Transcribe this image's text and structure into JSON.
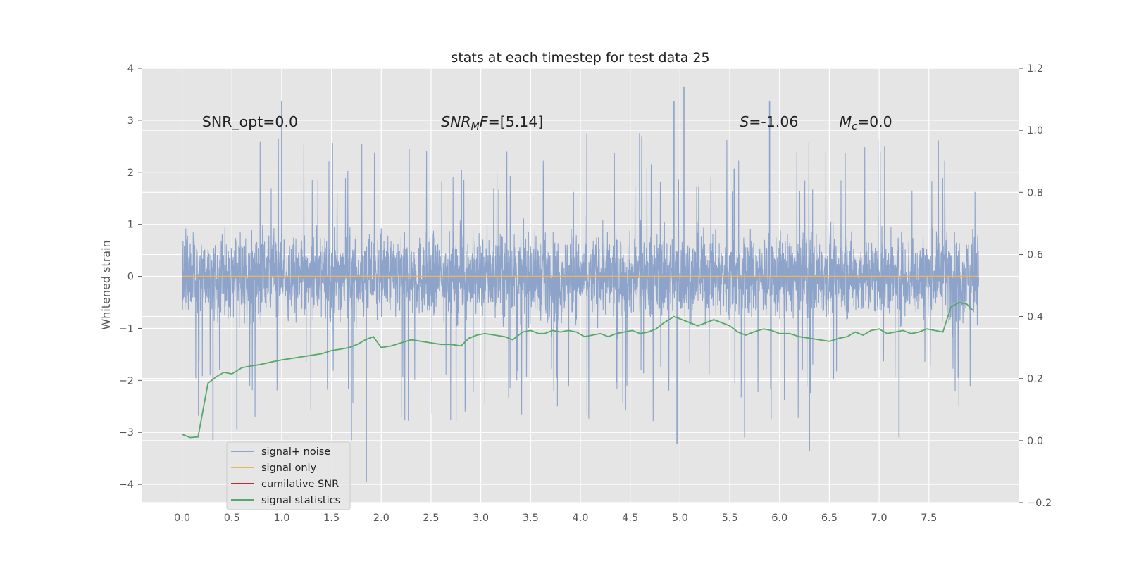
{
  "chart_data": {
    "type": "line",
    "title": "stats at each timestep for test data 25",
    "ylabel": "Whitened strain",
    "xlim": [
      -0.4,
      8.4
    ],
    "ylim": [
      -4.35,
      4
    ],
    "y2lim": [
      -0.2,
      1.2
    ],
    "x_ticks": [
      0.0,
      0.5,
      1.0,
      1.5,
      2.0,
      2.5,
      3.0,
      3.5,
      4.0,
      4.5,
      5.0,
      5.5,
      6.0,
      6.5,
      7.0,
      7.5
    ],
    "x_tick_labels": [
      "0.0",
      "0.5",
      "1.0",
      "1.5",
      "2.0",
      "2.5",
      "3.0",
      "3.5",
      "4.0",
      "4.5",
      "5.0",
      "5.5",
      "6.0",
      "6.5",
      "7.0",
      "7.5"
    ],
    "y_ticks": [
      -4,
      -3,
      -2,
      -1,
      0,
      1,
      2,
      3,
      4
    ],
    "y_tick_labels": [
      "−4",
      "−3",
      "−2",
      "−1",
      "0",
      "1",
      "2",
      "3",
      "4"
    ],
    "y2_ticks": [
      -0.2,
      0.0,
      0.2,
      0.4,
      0.6,
      0.8,
      1.0,
      1.2
    ],
    "y2_tick_labels": [
      "−0.2",
      "0.0",
      "0.2",
      "0.4",
      "0.6",
      "0.8",
      "1.0",
      "1.2"
    ],
    "grid": true,
    "legend_position": "lower-left",
    "annotations": [
      {
        "id": "snr-opt",
        "html": "SNR_opt=0.0",
        "x": 0.2,
        "y": 2.88
      },
      {
        "id": "snr-mf",
        "html": "<tspan font-style='italic'>SNR</tspan><tspan font-style='italic' font-size='14' dy='4'>M</tspan><tspan font-style='italic' dy='-4'>F</tspan>=[5.14]",
        "x": 2.6,
        "y": 2.88
      },
      {
        "id": "s-stat",
        "html": "<tspan font-style='italic'>S</tspan>=-1.06",
        "x": 5.6,
        "y": 2.88
      },
      {
        "id": "mc",
        "html": "<tspan font-style='italic'>M</tspan><tspan font-style='italic' font-size='14' dy='4'>c</tspan><tspan dy='-4'>=0.0</tspan>",
        "x": 6.6,
        "y": 2.88
      }
    ],
    "series": [
      {
        "name": "signal+ noise",
        "color": "#8da3c9",
        "axis": "left",
        "style": "dense_noise",
        "sample_rate_hz": 512,
        "x_range": [
          0.0,
          8.0
        ],
        "envelope": [
          -1.6,
          1.6
        ],
        "spikes": [
          {
            "x": 0.31,
            "y": -3.15
          },
          {
            "x": 1.0,
            "y": 3.38
          },
          {
            "x": 1.85,
            "y": -3.95
          },
          {
            "x": 4.94,
            "y": 3.37
          },
          {
            "x": 5.04,
            "y": 3.65
          },
          {
            "x": 4.97,
            "y": -3.22
          },
          {
            "x": 5.9,
            "y": 3.38
          },
          {
            "x": 6.3,
            "y": -3.35
          },
          {
            "x": 5.65,
            "y": -3.1
          },
          {
            "x": 7.2,
            "y": -3.1
          },
          {
            "x": 1.7,
            "y": -3.15
          },
          {
            "x": 0.55,
            "y": -2.95
          }
        ]
      },
      {
        "name": "signal only",
        "color": "#e9b760",
        "axis": "left",
        "x": [
          0.0,
          8.0
        ],
        "y": [
          0.0,
          0.0
        ]
      },
      {
        "name": "cumilative SNR",
        "color": "#d62728",
        "axis": "left",
        "x": [],
        "y": []
      },
      {
        "name": "signal statistics",
        "color": "#55a868",
        "axis": "right",
        "x": [
          0.0,
          0.08,
          0.16,
          0.26,
          0.34,
          0.42,
          0.5,
          0.6,
          0.68,
          0.78,
          0.85,
          0.92,
          1.0,
          1.1,
          1.2,
          1.3,
          1.4,
          1.5,
          1.6,
          1.68,
          1.76,
          1.84,
          1.92,
          2.0,
          2.1,
          2.2,
          2.3,
          2.4,
          2.5,
          2.6,
          2.7,
          2.8,
          2.88,
          2.96,
          3.04,
          3.14,
          3.24,
          3.32,
          3.42,
          3.5,
          3.58,
          3.64,
          3.72,
          3.8,
          3.88,
          3.96,
          4.04,
          4.12,
          4.2,
          4.28,
          4.36,
          4.44,
          4.52,
          4.6,
          4.68,
          4.76,
          4.84,
          4.94,
          5.02,
          5.1,
          5.18,
          5.26,
          5.34,
          5.42,
          5.5,
          5.58,
          5.66,
          5.74,
          5.84,
          5.92,
          6.0,
          6.1,
          6.2,
          6.3,
          6.4,
          6.5,
          6.6,
          6.68,
          6.76,
          6.84,
          6.92,
          7.0,
          7.08,
          7.16,
          7.24,
          7.32,
          7.4,
          7.48,
          7.56,
          7.64,
          7.72,
          7.8,
          7.88,
          7.94
        ],
        "y": [
          0.02,
          0.01,
          0.012,
          0.185,
          0.205,
          0.22,
          0.215,
          0.235,
          0.24,
          0.245,
          0.25,
          0.255,
          0.26,
          0.265,
          0.27,
          0.275,
          0.28,
          0.29,
          0.295,
          0.3,
          0.31,
          0.325,
          0.335,
          0.3,
          0.305,
          0.315,
          0.325,
          0.32,
          0.315,
          0.31,
          0.31,
          0.305,
          0.33,
          0.34,
          0.345,
          0.34,
          0.335,
          0.325,
          0.35,
          0.355,
          0.345,
          0.345,
          0.355,
          0.35,
          0.355,
          0.35,
          0.335,
          0.34,
          0.345,
          0.335,
          0.345,
          0.35,
          0.355,
          0.345,
          0.35,
          0.36,
          0.38,
          0.4,
          0.39,
          0.38,
          0.37,
          0.38,
          0.39,
          0.38,
          0.37,
          0.35,
          0.34,
          0.35,
          0.36,
          0.355,
          0.345,
          0.345,
          0.335,
          0.33,
          0.325,
          0.32,
          0.33,
          0.335,
          0.35,
          0.34,
          0.355,
          0.36,
          0.345,
          0.35,
          0.355,
          0.345,
          0.35,
          0.36,
          0.355,
          0.35,
          0.43,
          0.445,
          0.44,
          0.42
        ]
      }
    ]
  }
}
